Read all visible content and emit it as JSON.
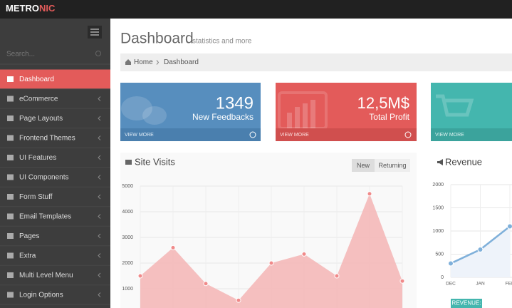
{
  "brand": {
    "main": "METRO",
    "accent": "NIC"
  },
  "sidebar": {
    "search_placeholder": "Search...",
    "menu": [
      "Dashboard",
      "eCommerce",
      "Page Layouts",
      "Frontend Themes",
      "UI Features",
      "UI Components",
      "Form Stuff",
      "Email Templates",
      "Pages",
      "Extra",
      "Multi Level Menu",
      "Login Options"
    ]
  },
  "header": {
    "title": "Dashboard",
    "subtitle": "statistics and more"
  },
  "breadcrumb": [
    "Home",
    "Dashboard"
  ],
  "stats": [
    {
      "number": "1349",
      "label": "New Feedbacks",
      "link": "VIEW MORE"
    },
    {
      "number": "12,5M$",
      "label": "Total Profit",
      "link": "VIEW MORE"
    },
    {
      "link": "VIEW MORE"
    }
  ],
  "site_visits": {
    "title": "Site Visits",
    "tabs": [
      "New",
      "Returning"
    ],
    "chart_data": {
      "type": "area",
      "values": [
        1500,
        2600,
        1200,
        550,
        2000,
        2350,
        1500,
        4700,
        1300
      ],
      "color": "#f5b5b5",
      "point_color": "#f08a8a",
      "ylim": [
        0,
        5000
      ],
      "yticks": [
        1000,
        2000,
        3000,
        4000,
        5000
      ],
      "grid": true
    }
  },
  "revenue": {
    "title": "Revenue",
    "legend_label": "REVENUE:",
    "chart_data": {
      "type": "line",
      "categories": [
        "DEC",
        "JAN",
        "FEB"
      ],
      "values": [
        300,
        600,
        1100
      ],
      "color": "#7fb0da",
      "ylim": [
        0,
        2000
      ],
      "yticks": [
        0,
        500,
        1000,
        1500,
        2000
      ],
      "grid": true
    }
  }
}
